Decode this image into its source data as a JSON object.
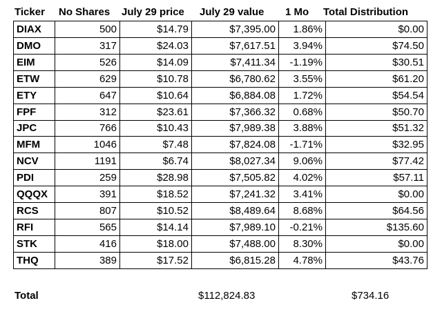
{
  "headers": {
    "ticker": "Ticker",
    "shares": "No Shares",
    "price": "July 29 price",
    "value": "July 29 value",
    "mo": "1 Mo",
    "dist": "Total Distribution"
  },
  "rows": [
    {
      "ticker": "DIAX",
      "shares": "500",
      "price": "$14.79",
      "value": "$7,395.00",
      "mo": "1.86%",
      "dist": "$0.00"
    },
    {
      "ticker": "DMO",
      "shares": "317",
      "price": "$24.03",
      "value": "$7,617.51",
      "mo": "3.94%",
      "dist": "$74.50"
    },
    {
      "ticker": "EIM",
      "shares": "526",
      "price": "$14.09",
      "value": "$7,411.34",
      "mo": "-1.19%",
      "dist": "$30.51"
    },
    {
      "ticker": "ETW",
      "shares": "629",
      "price": "$10.78",
      "value": "$6,780.62",
      "mo": "3.55%",
      "dist": "$61.20"
    },
    {
      "ticker": "ETY",
      "shares": "647",
      "price": "$10.64",
      "value": "$6,884.08",
      "mo": "1.72%",
      "dist": "$54.54"
    },
    {
      "ticker": "FPF",
      "shares": "312",
      "price": "$23.61",
      "value": "$7,366.32",
      "mo": "0.68%",
      "dist": "$50.70"
    },
    {
      "ticker": "JPC",
      "shares": "766",
      "price": "$10.43",
      "value": "$7,989.38",
      "mo": "3.88%",
      "dist": "$51.32"
    },
    {
      "ticker": "MFM",
      "shares": "1046",
      "price": "$7.48",
      "value": "$7,824.08",
      "mo": "-1.71%",
      "dist": "$32.95"
    },
    {
      "ticker": "NCV",
      "shares": "1191",
      "price": "$6.74",
      "value": "$8,027.34",
      "mo": "9.06%",
      "dist": "$77.42"
    },
    {
      "ticker": "PDI",
      "shares": "259",
      "price": "$28.98",
      "value": "$7,505.82",
      "mo": "4.02%",
      "dist": "$57.11"
    },
    {
      "ticker": "QQQX",
      "shares": "391",
      "price": "$18.52",
      "value": "$7,241.32",
      "mo": "3.41%",
      "dist": "$0.00"
    },
    {
      "ticker": "RCS",
      "shares": "807",
      "price": "$10.52",
      "value": "$8,489.64",
      "mo": "8.68%",
      "dist": "$64.56"
    },
    {
      "ticker": "RFI",
      "shares": "565",
      "price": "$14.14",
      "value": "$7,989.10",
      "mo": "-0.21%",
      "dist": "$135.60"
    },
    {
      "ticker": "STK",
      "shares": "416",
      "price": "$18.00",
      "value": "$7,488.00",
      "mo": "8.30%",
      "dist": "$0.00"
    },
    {
      "ticker": "THQ",
      "shares": "389",
      "price": "$17.52",
      "value": "$6,815.28",
      "mo": "4.78%",
      "dist": "$43.76"
    }
  ],
  "total": {
    "label": "Total",
    "value": "$112,824.83",
    "dist": "$734.16"
  }
}
